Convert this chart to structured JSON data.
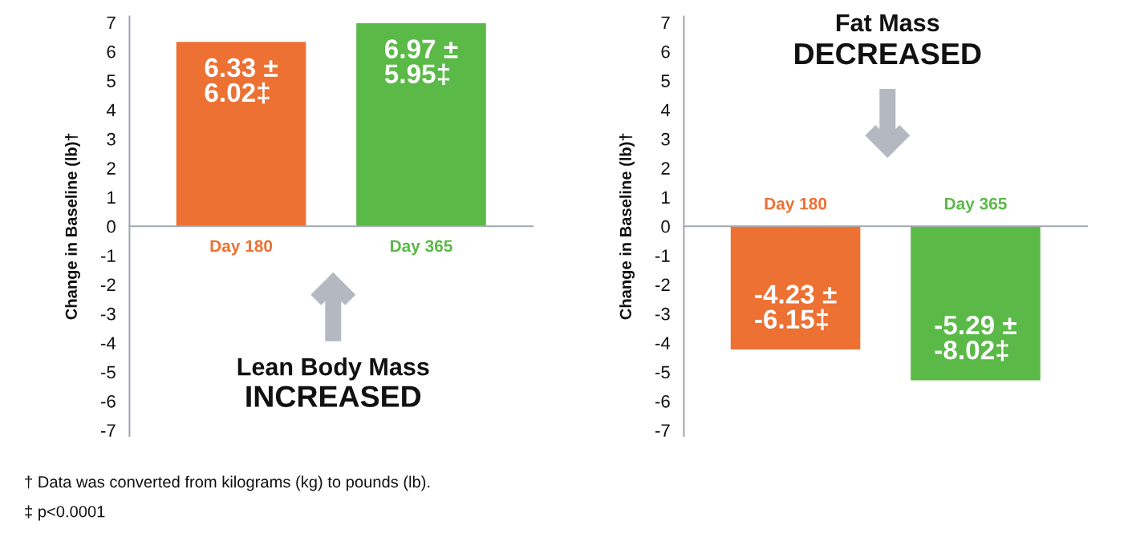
{
  "chart_data": [
    {
      "type": "bar",
      "title": "Lean Body Mass",
      "subtitle": "INCREASED",
      "ylabel": "Change in Baseline (lb)†",
      "categories": [
        "Day 180",
        "Day 365"
      ],
      "values": [
        6.33,
        6.97
      ],
      "colors": [
        "#ec7133",
        "#5ab947"
      ],
      "value_labels": [
        "6.33 ±\n6.02‡",
        "6.97 ±\n5.95‡"
      ],
      "ylim": [
        -7.2,
        7.2
      ],
      "yticks": [
        -7,
        -6,
        -5,
        -4,
        -3,
        -2,
        -1,
        0,
        1,
        2,
        3,
        4,
        5,
        6,
        7
      ],
      "annotations": [
        "† Data was converted from kilograms (kg) to pounds (lb).",
        "‡ p<0.0001"
      ]
    },
    {
      "type": "bar",
      "title": "Fat Mass",
      "subtitle": "DECREASED",
      "ylabel": "Change in Baseline (lb)†",
      "categories": [
        "Day 180",
        "Day 365"
      ],
      "values": [
        -4.23,
        -5.29
      ],
      "colors": [
        "#ec7133",
        "#5ab947"
      ],
      "value_labels": [
        "-4.23 ±\n-6.15‡",
        "-5.29 ±\n-8.02‡"
      ],
      "ylim": [
        -7.2,
        7.2
      ],
      "yticks": [
        -7,
        -6,
        -5,
        -4,
        -3,
        -2,
        -1,
        0,
        1,
        2,
        3,
        4,
        5,
        6,
        7
      ]
    }
  ]
}
